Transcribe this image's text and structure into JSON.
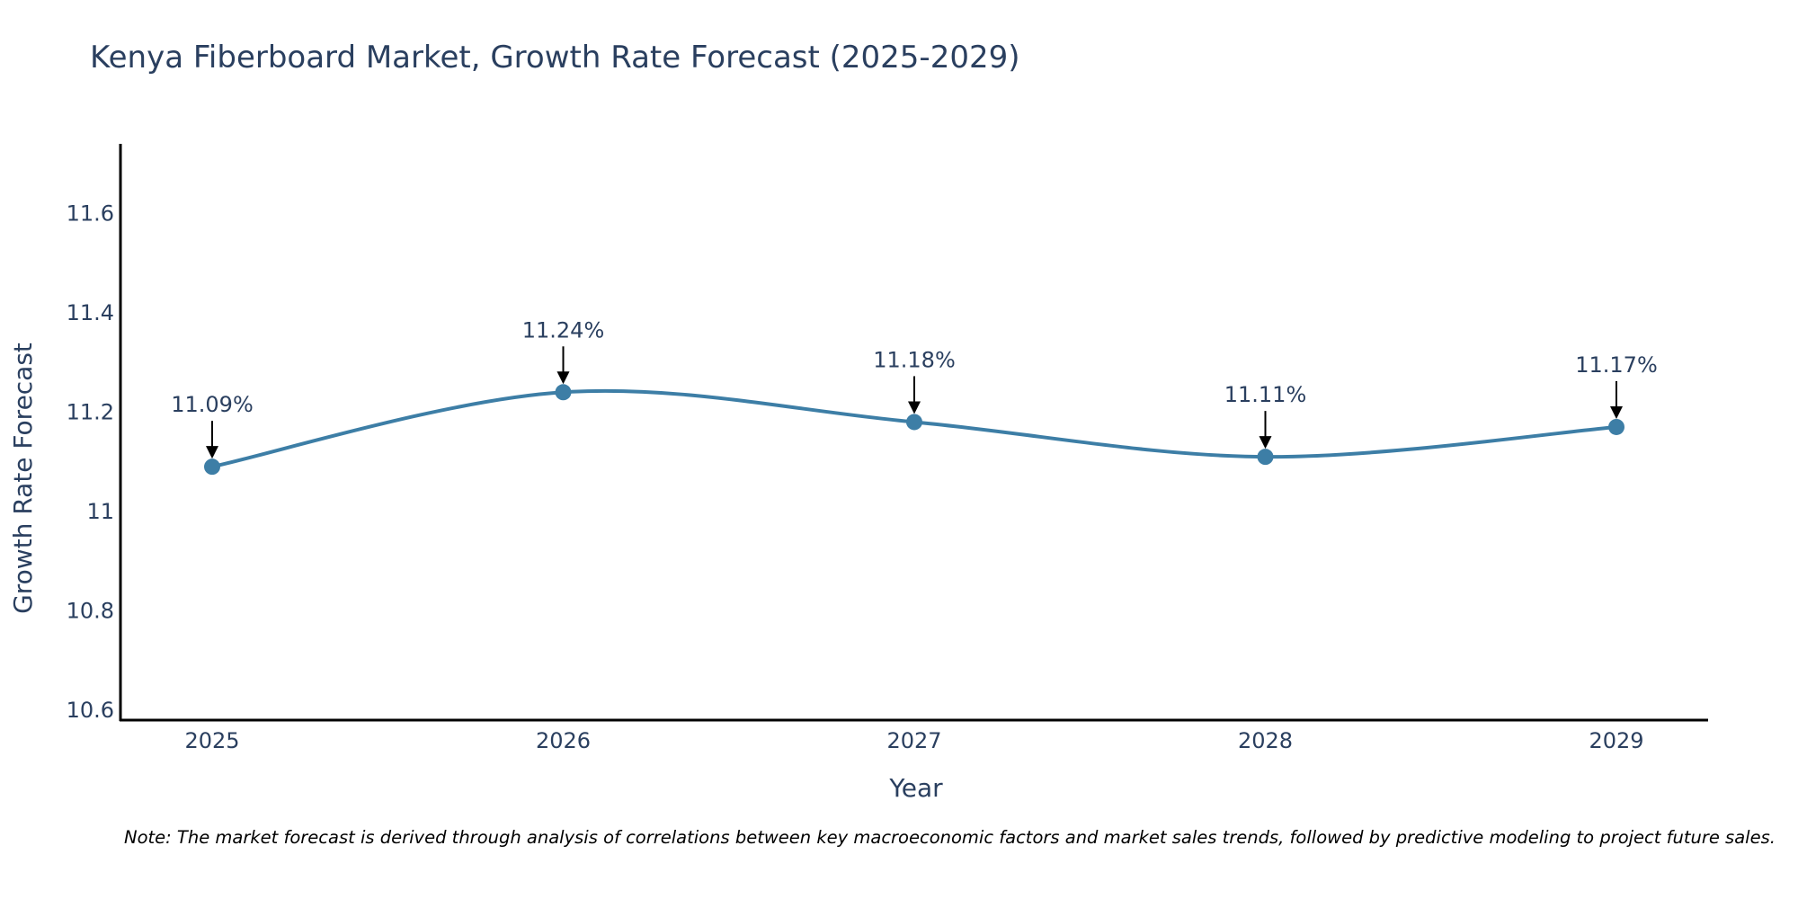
{
  "chart_data": {
    "type": "line",
    "title": "Kenya Fiberboard Market, Growth Rate Forecast (2025-2029)",
    "xlabel": "Year",
    "ylabel": "Growth Rate Forecast",
    "x": [
      "2025",
      "2026",
      "2027",
      "2028",
      "2029"
    ],
    "series": [
      {
        "name": "Growth Rate Forecast",
        "values": [
          11.09,
          11.24,
          11.18,
          11.11,
          11.17
        ]
      }
    ],
    "annotations": [
      "11.09%",
      "11.24%",
      "11.18%",
      "11.11%",
      "11.17%"
    ],
    "yticks": [
      "10.6",
      "10.8",
      "11",
      "11.2",
      "11.4",
      "11.6"
    ],
    "ylim": [
      10.58,
      11.74
    ],
    "line_color": "#3d7ea6",
    "note": "Note: The market forecast is derived through analysis of correlations between key macroeconomic factors and market sales trends, followed by predictive modeling to project future sales."
  }
}
